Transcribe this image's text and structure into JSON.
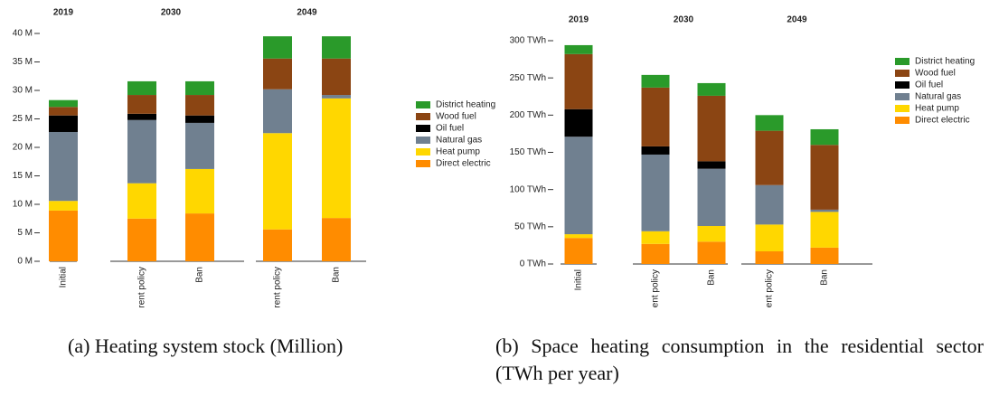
{
  "chart_data": [
    {
      "type": "stacked-bar",
      "caption": "(a) Heating system stock (Million)",
      "groups": [
        {
          "label": "2019",
          "size": 1
        },
        {
          "label": "2030",
          "size": 2
        },
        {
          "label": "2049",
          "size": 2
        }
      ],
      "categories": [
        "Initial",
        "Current policy",
        "Ban",
        "Current policy",
        "Ban"
      ],
      "series": [
        {
          "name": "District heating",
          "color": "#2a9a2a",
          "values": [
            1.2,
            2.4,
            2.4,
            3.9,
            3.9
          ]
        },
        {
          "name": "Wood fuel",
          "color": "#8b4513",
          "values": [
            1.5,
            3.3,
            3.6,
            5.4,
            6.4
          ]
        },
        {
          "name": "Oil fuel",
          "color": "#000000",
          "values": [
            2.9,
            1.1,
            1.3,
            0,
            0
          ]
        },
        {
          "name": "Natural gas",
          "color": "#708090",
          "values": [
            12.1,
            11.1,
            8.1,
            7.7,
            0.6
          ]
        },
        {
          "name": "Heat pump",
          "color": "#ffd700",
          "values": [
            1.7,
            6.2,
            7.8,
            16.9,
            21
          ]
        },
        {
          "name": "Direct electric",
          "color": "#ff8c00",
          "values": [
            8.9,
            7.5,
            8.4,
            5.6,
            7.6
          ]
        }
      ],
      "ylim": [
        0,
        40
      ],
      "yticks": [
        {
          "value": 0,
          "label": "0 M"
        },
        {
          "value": 5,
          "label": "5 M"
        },
        {
          "value": 10,
          "label": "10 M"
        },
        {
          "value": 15,
          "label": "15 M"
        },
        {
          "value": 20,
          "label": "20 M"
        },
        {
          "value": 25,
          "label": "25 M"
        },
        {
          "value": 30,
          "label": "30 M"
        },
        {
          "value": 35,
          "label": "35 M"
        },
        {
          "value": 40,
          "label": "40 M"
        }
      ]
    },
    {
      "type": "stacked-bar",
      "caption": "(b) Space heating consumption in the residential sector (TWh per year)",
      "groups": [
        {
          "label": "2019",
          "size": 1
        },
        {
          "label": "2030",
          "size": 2
        },
        {
          "label": "2049",
          "size": 2
        }
      ],
      "categories": [
        "Initial",
        "Current policy",
        "Ban",
        "Current policy",
        "Ban"
      ],
      "series": [
        {
          "name": "District heating",
          "color": "#2a9a2a",
          "values": [
            12,
            17,
            17,
            21,
            21
          ]
        },
        {
          "name": "Wood fuel",
          "color": "#8b4513",
          "values": [
            74,
            79,
            88,
            73,
            87
          ]
        },
        {
          "name": "Oil fuel",
          "color": "#000000",
          "values": [
            37,
            11,
            10,
            0,
            0
          ]
        },
        {
          "name": "Natural gas",
          "color": "#708090",
          "values": [
            131,
            103,
            77,
            53,
            3
          ]
        },
        {
          "name": "Heat pump",
          "color": "#ffd700",
          "values": [
            5,
            17,
            21,
            36,
            48
          ]
        },
        {
          "name": "Direct electric",
          "color": "#ff8c00",
          "values": [
            35,
            27,
            30,
            17,
            22
          ]
        }
      ],
      "ylim": [
        0,
        300
      ],
      "yticks": [
        {
          "value": 0,
          "label": "0 TWh"
        },
        {
          "value": 50,
          "label": "50 TWh"
        },
        {
          "value": 100,
          "label": "100 TWh"
        },
        {
          "value": 150,
          "label": "150 TWh"
        },
        {
          "value": 200,
          "label": "200 TWh"
        },
        {
          "value": 250,
          "label": "250 TWh"
        },
        {
          "value": 300,
          "label": "300 TWh"
        }
      ]
    }
  ]
}
